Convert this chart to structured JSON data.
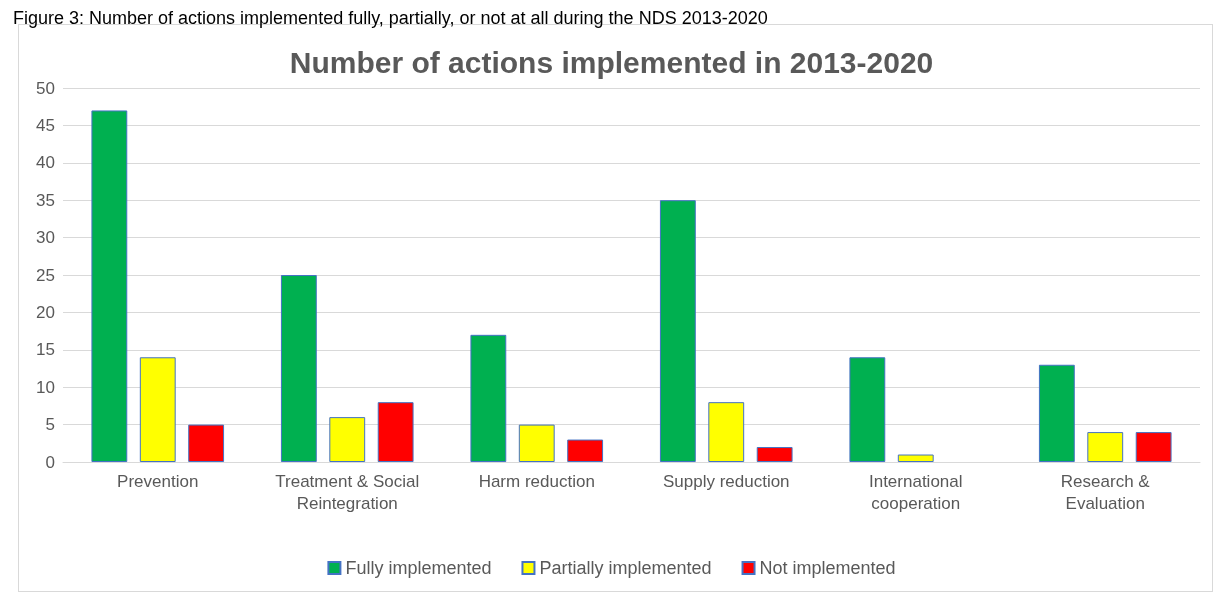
{
  "chart_data": {
    "type": "bar",
    "title": "Number of actions implemented in 2013-2020",
    "annotations": [
      "Figure 3: Number of actions implemented fully, partially, or not at all during the NDS 2013-2020"
    ],
    "categories": [
      "Prevention",
      "Treatment & Social\nReintegration",
      "Harm reduction",
      "Supply reduction",
      "International\ncooperation",
      "Research &\nEvaluation"
    ],
    "series": [
      {
        "name": "Fully implemented",
        "color": "#00b050",
        "values": [
          47,
          25,
          17,
          35,
          14,
          13
        ]
      },
      {
        "name": "Partially implemented",
        "color": "#ffff00",
        "values": [
          14,
          6,
          5,
          8,
          1,
          4
        ]
      },
      {
        "name": "Not implemented",
        "color": "#ff0000",
        "values": [
          5,
          8,
          3,
          2,
          0,
          4
        ]
      }
    ],
    "ylim": [
      0,
      50
    ],
    "yticks": [
      0,
      5,
      10,
      15,
      20,
      25,
      30,
      35,
      40,
      45,
      50
    ],
    "grid": "y",
    "legend": "bottom"
  }
}
